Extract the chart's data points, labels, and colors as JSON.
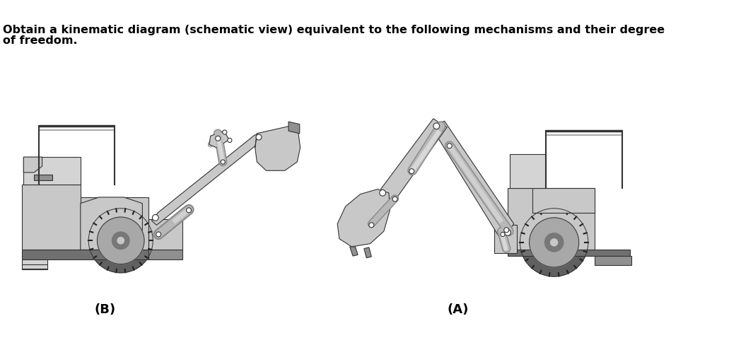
{
  "title_line1": "Obtain a kinematic diagram (schematic view) equivalent to the following mechanisms and their degree",
  "title_line2": "of freedom.",
  "label_B": "(B)",
  "label_A": "(A)",
  "bg_color": "#ffffff",
  "body_color": "#c8c8c8",
  "body_color2": "#d4d4d4",
  "dark_color": "#909090",
  "darker_color": "#707070",
  "outline_color": "#333333",
  "wheel_outer": "#606060",
  "wheel_inner": "#a8a8a8",
  "wheel_hub": "#787878",
  "cyl_color": "#b8b8b8",
  "title_fontsize": 11.5,
  "label_fontsize": 13
}
